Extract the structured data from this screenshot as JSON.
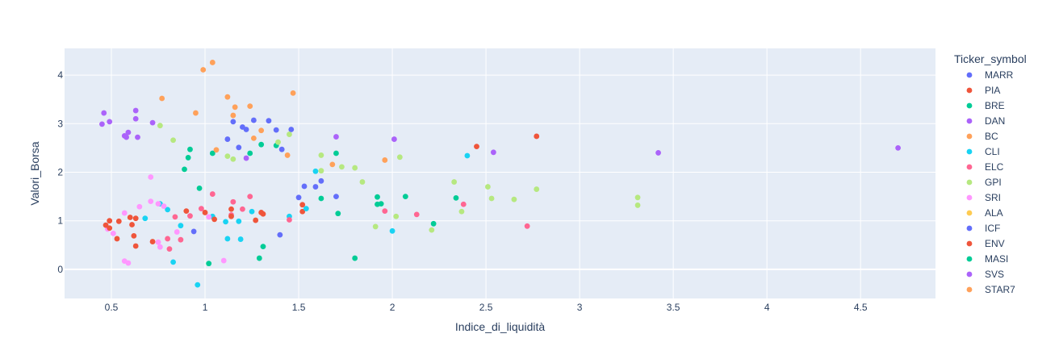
{
  "chart_data": {
    "type": "scatter",
    "xlabel": "Indice_di_liquidità",
    "ylabel": "Valori_Borsa",
    "legend_title": "Ticker_symbol",
    "legend_position": "right",
    "grid": true,
    "xlim": [
      0.25,
      4.9
    ],
    "ylim": [
      -0.6,
      4.55
    ],
    "xticks": [
      0.5,
      1,
      1.5,
      2,
      2.5,
      3,
      3.5,
      4,
      4.5
    ],
    "yticks": [
      0,
      1,
      2,
      3,
      4
    ],
    "series": [
      {
        "name": "MARR",
        "color": "#636efa",
        "points": [
          [
            0.94,
            0.78
          ],
          [
            1.12,
            2.68
          ],
          [
            1.18,
            2.51
          ],
          [
            1.2,
            2.93
          ],
          [
            1.22,
            2.88
          ],
          [
            1.26,
            3.07
          ],
          [
            1.34,
            3.06
          ],
          [
            1.38,
            2.87
          ],
          [
            1.41,
            2.47
          ],
          [
            1.46,
            2.88
          ],
          [
            1.15,
            3.04
          ],
          [
            1.5,
            1.48
          ],
          [
            1.53,
            1.71
          ],
          [
            1.59,
            1.7
          ],
          [
            1.62,
            1.82
          ],
          [
            1.7,
            1.5
          ],
          [
            1.4,
            0.71
          ]
        ]
      },
      {
        "name": "PIA",
        "color": "#EF553B",
        "points": [
          [
            2.45,
            2.53
          ],
          [
            2.77,
            2.74
          ],
          [
            1.52,
            1.33
          ],
          [
            1.52,
            1.19
          ],
          [
            1.27,
            1.01
          ],
          [
            1.3,
            1.17
          ]
        ]
      },
      {
        "name": "BRE",
        "color": "#00cc96",
        "points": [
          [
            0.89,
            2.06
          ],
          [
            0.91,
            2.3
          ],
          [
            0.92,
            2.47
          ],
          [
            0.97,
            1.67
          ],
          [
            1.04,
            2.39
          ],
          [
            1.24,
            2.39
          ],
          [
            1.3,
            2.57
          ],
          [
            1.38,
            2.55
          ],
          [
            1.02,
            0.12
          ],
          [
            1.29,
            0.23
          ],
          [
            1.31,
            0.47
          ],
          [
            1.7,
            2.39
          ],
          [
            1.62,
            1.46
          ],
          [
            1.71,
            1.15
          ],
          [
            1.92,
            1.49
          ],
          [
            1.92,
            1.34
          ],
          [
            1.94,
            1.35
          ],
          [
            2.07,
            1.5
          ],
          [
            2.22,
            0.94
          ],
          [
            2.34,
            1.47
          ],
          [
            1.8,
            0.23
          ]
        ]
      },
      {
        "name": "DAN",
        "color": "#ab63fa",
        "points": [
          [
            0.46,
            3.22
          ],
          [
            0.49,
            3.04
          ],
          [
            0.57,
            2.75
          ],
          [
            0.59,
            2.82
          ],
          [
            0.63,
            3.27
          ],
          [
            0.63,
            3.1
          ],
          [
            0.64,
            2.72
          ],
          [
            0.72,
            3.02
          ],
          [
            1.22,
            2.29
          ],
          [
            1.7,
            2.73
          ],
          [
            2.01,
            2.68
          ],
          [
            2.54,
            2.41
          ],
          [
            3.42,
            2.4
          ],
          [
            4.7,
            2.5
          ]
        ]
      },
      {
        "name": "BC",
        "color": "#FFA15A",
        "points": [
          [
            0.99,
            4.11
          ],
          [
            1.04,
            4.26
          ],
          [
            0.77,
            3.52
          ],
          [
            0.95,
            3.22
          ],
          [
            1.12,
            3.55
          ],
          [
            1.16,
            3.34
          ],
          [
            1.24,
            3.36
          ],
          [
            1.15,
            3.17
          ],
          [
            1.26,
            2.7
          ],
          [
            1.3,
            2.86
          ],
          [
            1.47,
            3.63
          ],
          [
            1.68,
            2.16
          ],
          [
            1.96,
            2.25
          ],
          [
            1.44,
            2.35
          ],
          [
            1.06,
            2.46
          ]
        ]
      },
      {
        "name": "CLI",
        "color": "#19d3f3",
        "points": [
          [
            0.68,
            1.05
          ],
          [
            0.76,
            1.35
          ],
          [
            0.8,
            1.23
          ],
          [
            0.83,
            0.15
          ],
          [
            0.87,
            0.9
          ],
          [
            0.96,
            -0.32
          ],
          [
            1.04,
            1.09
          ],
          [
            1.11,
            0.98
          ],
          [
            1.12,
            0.63
          ],
          [
            1.18,
            0.99
          ],
          [
            1.19,
            0.62
          ],
          [
            1.25,
            1.19
          ],
          [
            1.45,
            1.09
          ],
          [
            1.54,
            1.25
          ],
          [
            1.59,
            2.02
          ],
          [
            2.0,
            0.79
          ],
          [
            2.4,
            2.34
          ]
        ]
      },
      {
        "name": "ELC",
        "color": "#FF6692",
        "points": [
          [
            0.8,
            0.63
          ],
          [
            0.81,
            0.42
          ],
          [
            0.84,
            1.08
          ],
          [
            0.87,
            0.61
          ],
          [
            0.92,
            1.1
          ],
          [
            0.98,
            1.25
          ],
          [
            1.04,
            1.55
          ],
          [
            1.14,
            1.12
          ],
          [
            1.15,
            1.39
          ],
          [
            1.2,
            1.24
          ],
          [
            1.24,
            1.5
          ],
          [
            1.45,
            1.02
          ],
          [
            1.96,
            1.2
          ],
          [
            2.13,
            1.13
          ],
          [
            2.38,
            1.34
          ],
          [
            2.72,
            0.89
          ]
        ]
      },
      {
        "name": "GPI",
        "color": "#B6E880",
        "points": [
          [
            0.76,
            2.96
          ],
          [
            0.83,
            2.66
          ],
          [
            1.12,
            2.33
          ],
          [
            1.15,
            2.27
          ],
          [
            1.39,
            2.62
          ],
          [
            1.45,
            2.78
          ],
          [
            1.62,
            2.35
          ],
          [
            1.62,
            2.03
          ],
          [
            1.73,
            2.11
          ],
          [
            1.8,
            2.09
          ],
          [
            1.84,
            1.8
          ],
          [
            1.91,
            0.88
          ],
          [
            2.02,
            1.09
          ],
          [
            2.04,
            2.31
          ],
          [
            2.21,
            0.81
          ],
          [
            2.33,
            1.8
          ],
          [
            2.37,
            1.19
          ],
          [
            2.51,
            1.7
          ],
          [
            2.53,
            1.46
          ],
          [
            2.65,
            1.44
          ],
          [
            2.77,
            1.65
          ],
          [
            3.31,
            1.48
          ],
          [
            3.31,
            1.32
          ]
        ]
      },
      {
        "name": "SRI",
        "color": "#FF97FF",
        "points": [
          [
            0.48,
            0.83
          ],
          [
            0.51,
            0.74
          ],
          [
            0.57,
            1.16
          ],
          [
            0.57,
            0.17
          ],
          [
            0.59,
            0.13
          ],
          [
            0.65,
            1.29
          ],
          [
            0.71,
            1.9
          ],
          [
            0.71,
            1.4
          ],
          [
            0.75,
            1.35
          ],
          [
            0.75,
            0.56
          ],
          [
            0.76,
            0.46
          ],
          [
            0.78,
            1.3
          ],
          [
            0.85,
            0.77
          ],
          [
            1.02,
            1.08
          ],
          [
            1.1,
            0.18
          ]
        ]
      },
      {
        "name": "ALA",
        "color": "#FECB52",
        "points": []
      },
      {
        "name": "ICF",
        "color": "#636efa",
        "points": []
      },
      {
        "name": "ENV",
        "color": "#EF553B",
        "points": [
          [
            0.47,
            0.91
          ],
          [
            0.49,
            1.0
          ],
          [
            0.49,
            0.85
          ],
          [
            0.53,
            0.63
          ],
          [
            0.54,
            0.99
          ],
          [
            0.6,
            1.07
          ],
          [
            0.61,
            0.92
          ],
          [
            0.62,
            0.69
          ],
          [
            0.63,
            1.05
          ],
          [
            0.63,
            0.48
          ],
          [
            0.72,
            0.57
          ],
          [
            0.9,
            1.2
          ],
          [
            1.0,
            1.17
          ],
          [
            1.05,
            1.03
          ],
          [
            1.14,
            1.24
          ],
          [
            1.14,
            1.09
          ],
          [
            1.31,
            1.14
          ]
        ]
      },
      {
        "name": "MASI",
        "color": "#00cc96",
        "points": []
      },
      {
        "name": "SVS",
        "color": "#ab63fa",
        "points": [
          [
            0.45,
            2.99
          ],
          [
            0.58,
            2.72
          ]
        ]
      },
      {
        "name": "STAR7",
        "color": "#FFA15A",
        "points": []
      }
    ]
  }
}
